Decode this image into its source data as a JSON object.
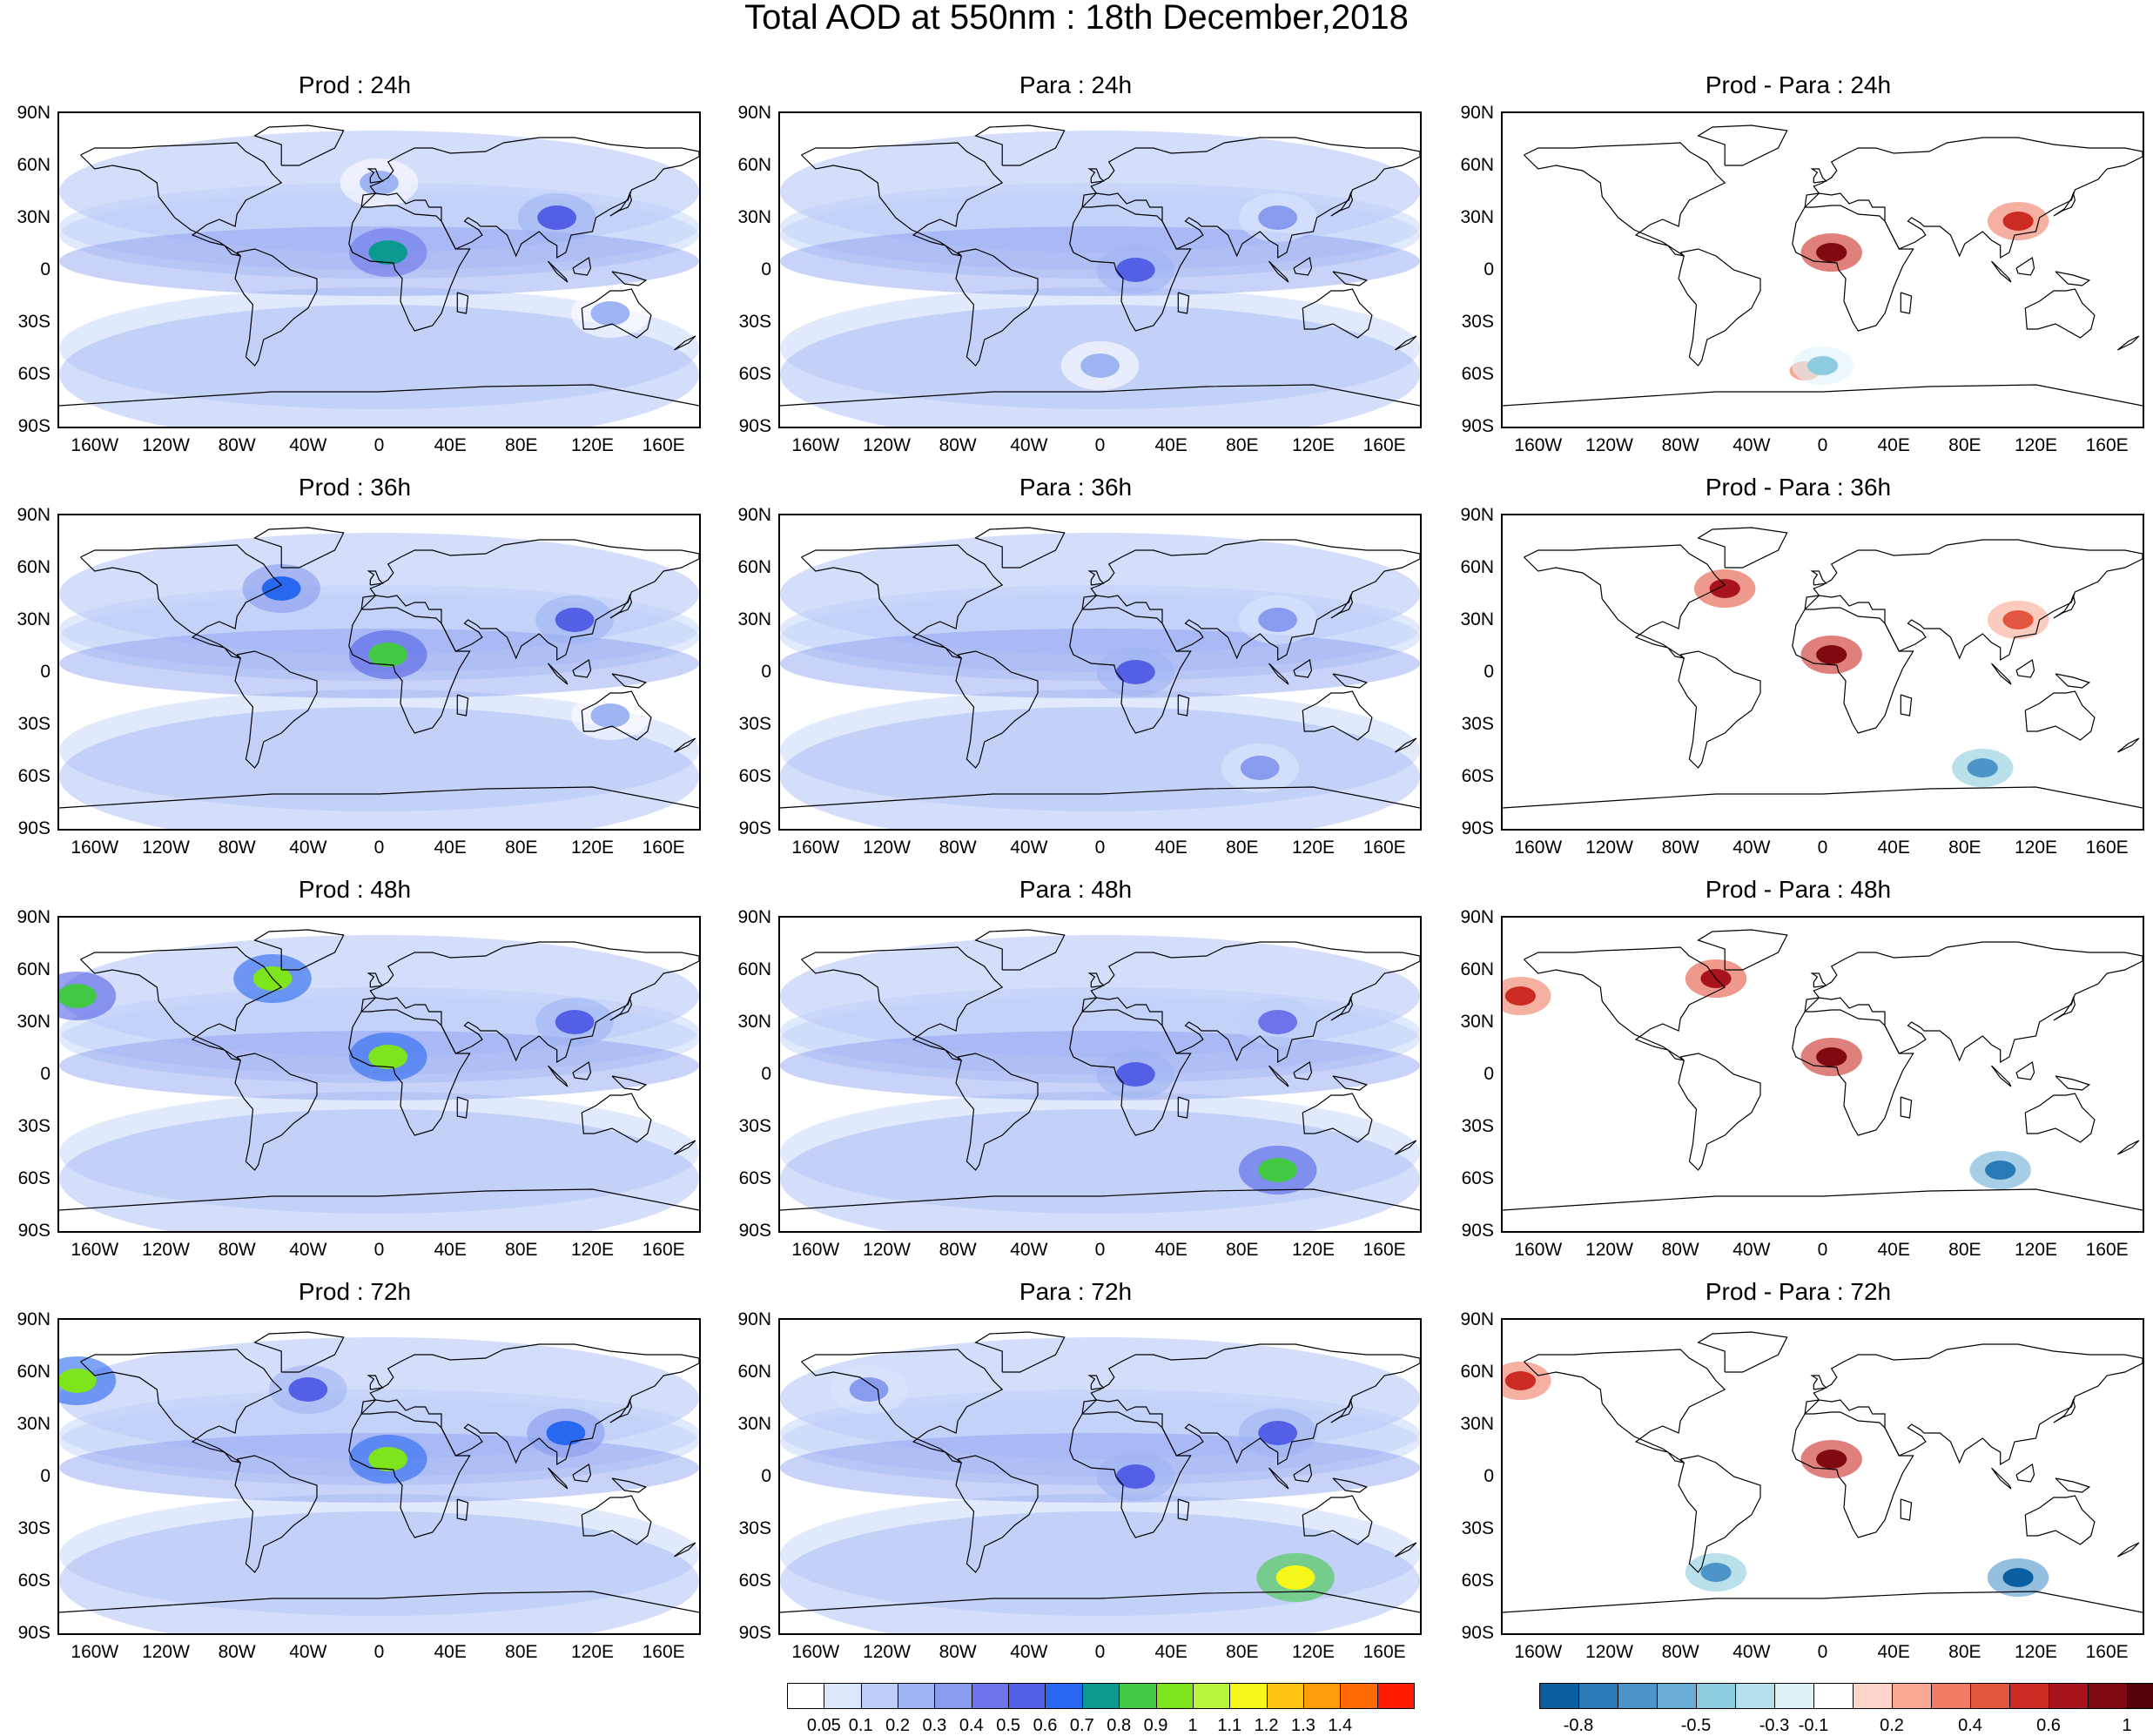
{
  "title": "Total AOD at 550nm : 18th December,2018",
  "lat_ticks": [
    "90N",
    "60N",
    "30N",
    "0",
    "30S",
    "60S",
    "90S"
  ],
  "lon_ticks": [
    "160W",
    "120W",
    "80W",
    "40W",
    "0",
    "40E",
    "80E",
    "120E",
    "160E"
  ],
  "rows": [
    {
      "lead": "24h",
      "titles": [
        "Prod : 24h",
        "Para : 24h",
        "Prod - Para : 24h"
      ]
    },
    {
      "lead": "36h",
      "titles": [
        "Prod : 36h",
        "Para : 36h",
        "Prod - Para : 36h"
      ]
    },
    {
      "lead": "48h",
      "titles": [
        "Prod : 48h",
        "Para : 48h",
        "Prod - Para : 48h"
      ]
    },
    {
      "lead": "72h",
      "titles": [
        "Prod : 72h",
        "Para : 72h",
        "Prod - Para : 72h"
      ]
    }
  ],
  "colorbar_aod": {
    "labels": [
      "0.05",
      "0.1",
      "0.2",
      "0.3",
      "0.4",
      "0.5",
      "0.6",
      "0.7",
      "0.8",
      "0.9",
      "1",
      "1.1",
      "1.2",
      "1.3",
      "1.4"
    ],
    "colors": [
      "#ffffff",
      "#dce6fb",
      "#bccef8",
      "#9fb4f3",
      "#889bef",
      "#6d74ea",
      "#5360e6",
      "#2868f0",
      "#0c9a90",
      "#42c844",
      "#7ee51c",
      "#b9f43c",
      "#f5f71a",
      "#ffc413",
      "#ff9d0d",
      "#ff6a05",
      "#ff1a00"
    ]
  },
  "colorbar_diff": {
    "labels": [
      "-0.8",
      "-0.5",
      "-0.3",
      "-0.1",
      "0.2",
      "0.4",
      "0.6",
      "1"
    ],
    "colors": [
      "#0a5fa0",
      "#2a7ab8",
      "#4d94c8",
      "#6aaed6",
      "#8ccbe0",
      "#b3e0ea",
      "#def2f6",
      "#ffffff",
      "#fcd4ca",
      "#f9a893",
      "#f07b64",
      "#e2553f",
      "#cc2b24",
      "#a8131c",
      "#7f0a12",
      "#55030b"
    ]
  },
  "map_features": {
    "prod_24h": [
      {
        "lon": 5,
        "lat": 10,
        "level": 8
      },
      {
        "lon": 100,
        "lat": 30,
        "level": 6
      },
      {
        "lon": 0,
        "lat": 50,
        "level": 3
      },
      {
        "lon": 130,
        "lat": -25,
        "level": 3
      }
    ],
    "para_24h": [
      {
        "lon": 20,
        "lat": 0,
        "level": 6
      },
      {
        "lon": 100,
        "lat": 30,
        "level": 4
      },
      {
        "lon": 0,
        "lat": -55,
        "level": 3
      }
    ],
    "diff_24h": [
      {
        "lon": 5,
        "lat": 10,
        "level": 14
      },
      {
        "lon": 110,
        "lat": 28,
        "level": 12
      },
      {
        "lon": -10,
        "lat": -58,
        "level": 9
      },
      {
        "lon": 0,
        "lat": -55,
        "level": 4
      }
    ],
    "prod_36h": [
      {
        "lon": 5,
        "lat": 10,
        "level": 9
      },
      {
        "lon": -55,
        "lat": 48,
        "level": 7
      },
      {
        "lon": 110,
        "lat": 30,
        "level": 6
      },
      {
        "lon": 130,
        "lat": -25,
        "level": 3
      }
    ],
    "para_36h": [
      {
        "lon": 20,
        "lat": 0,
        "level": 6
      },
      {
        "lon": 100,
        "lat": 30,
        "level": 4
      },
      {
        "lon": 90,
        "lat": -55,
        "level": 4
      }
    ],
    "diff_36h": [
      {
        "lon": 5,
        "lat": 10,
        "level": 14
      },
      {
        "lon": -55,
        "lat": 48,
        "level": 13
      },
      {
        "lon": 110,
        "lat": 30,
        "level": 11
      },
      {
        "lon": 90,
        "lat": -55,
        "level": 2
      }
    ],
    "prod_48h": [
      {
        "lon": 5,
        "lat": 10,
        "level": 10
      },
      {
        "lon": -60,
        "lat": 55,
        "level": 10
      },
      {
        "lon": -170,
        "lat": 45,
        "level": 9
      },
      {
        "lon": 110,
        "lat": 30,
        "level": 6
      }
    ],
    "para_48h": [
      {
        "lon": 20,
        "lat": 0,
        "level": 6
      },
      {
        "lon": 100,
        "lat": -55,
        "level": 9
      },
      {
        "lon": 100,
        "lat": 30,
        "level": 5
      }
    ],
    "diff_48h": [
      {
        "lon": 5,
        "lat": 10,
        "level": 14
      },
      {
        "lon": -60,
        "lat": 55,
        "level": 13
      },
      {
        "lon": -170,
        "lat": 45,
        "level": 12
      },
      {
        "lon": 100,
        "lat": -55,
        "level": 1
      }
    ],
    "prod_72h": [
      {
        "lon": 5,
        "lat": 10,
        "level": 10
      },
      {
        "lon": -170,
        "lat": 55,
        "level": 10
      },
      {
        "lon": -40,
        "lat": 50,
        "level": 6
      },
      {
        "lon": 105,
        "lat": 25,
        "level": 7
      }
    ],
    "para_72h": [
      {
        "lon": 20,
        "lat": 0,
        "level": 6
      },
      {
        "lon": 110,
        "lat": -58,
        "level": 12
      },
      {
        "lon": 100,
        "lat": 25,
        "level": 6
      },
      {
        "lon": -130,
        "lat": 50,
        "level": 4
      }
    ],
    "diff_72h": [
      {
        "lon": 5,
        "lat": 10,
        "level": 14
      },
      {
        "lon": -170,
        "lat": 55,
        "level": 12
      },
      {
        "lon": 110,
        "lat": -58,
        "level": 0
      },
      {
        "lon": -60,
        "lat": -55,
        "level": 2
      }
    ]
  }
}
